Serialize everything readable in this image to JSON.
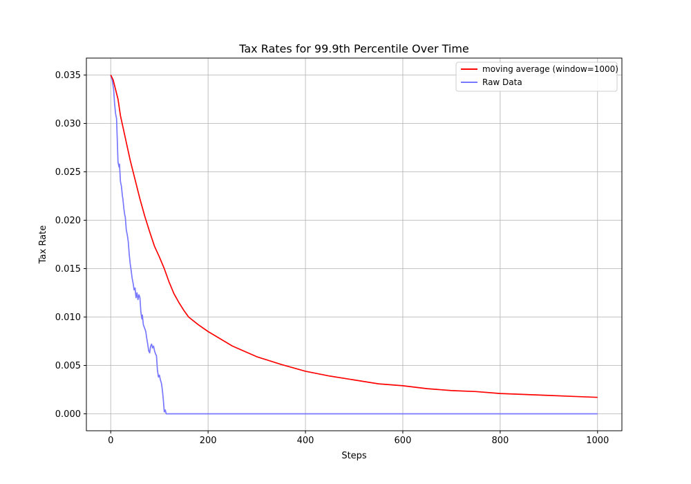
{
  "chart_data": {
    "type": "line",
    "title": "Tax Rates for 99.9th Percentile Over Time",
    "xlabel": "Steps",
    "ylabel": "Tax Rate",
    "xlim": [
      -50,
      1050
    ],
    "ylim": [
      -0.00175,
      0.03675
    ],
    "xticks": [
      0,
      200,
      400,
      600,
      800,
      1000
    ],
    "xtick_labels": [
      "0",
      "200",
      "400",
      "600",
      "800",
      "1000"
    ],
    "yticks": [
      0.0,
      0.005,
      0.01,
      0.015,
      0.02,
      0.025,
      0.03,
      0.035
    ],
    "ytick_labels": [
      "0.000",
      "0.005",
      "0.010",
      "0.015",
      "0.020",
      "0.025",
      "0.030",
      "0.035"
    ],
    "grid": true,
    "legend_position": "top-right",
    "series": [
      {
        "name": "moving average (window=1000)",
        "color": "#ff0000",
        "x": [
          0,
          5,
          10,
          15,
          20,
          30,
          40,
          50,
          60,
          70,
          80,
          90,
          100,
          110,
          120,
          130,
          140,
          150,
          160,
          180,
          200,
          250,
          300,
          350,
          400,
          450,
          500,
          550,
          600,
          650,
          700,
          750,
          800,
          850,
          900,
          950,
          1000
        ],
        "y": [
          0.035,
          0.0345,
          0.0335,
          0.0325,
          0.0308,
          0.0285,
          0.0262,
          0.0242,
          0.0222,
          0.0204,
          0.0188,
          0.0173,
          0.0162,
          0.015,
          0.0136,
          0.0124,
          0.0115,
          0.0107,
          0.01,
          0.0092,
          0.0085,
          0.007,
          0.0059,
          0.0051,
          0.0044,
          0.0039,
          0.0035,
          0.0031,
          0.0029,
          0.0026,
          0.0024,
          0.0023,
          0.0021,
          0.002,
          0.0019,
          0.0018,
          0.0017
        ]
      },
      {
        "name": "Raw Data",
        "color": "#7777ff",
        "x": [
          0,
          3,
          6,
          8,
          10,
          12,
          15,
          17,
          18,
          20,
          22,
          24,
          25,
          27,
          29,
          30,
          32,
          34,
          36,
          38,
          40,
          42,
          44,
          46,
          48,
          50,
          52,
          54,
          56,
          58,
          60,
          62,
          64,
          65,
          67,
          70,
          72,
          74,
          76,
          78,
          80,
          82,
          84,
          86,
          88,
          90,
          92,
          94,
          96,
          98,
          100,
          102,
          104,
          106,
          108,
          110,
          112,
          114,
          116,
          118,
          120,
          1000
        ],
        "y": [
          0.035,
          0.0345,
          0.0335,
          0.032,
          0.031,
          0.0305,
          0.026,
          0.0255,
          0.0258,
          0.024,
          0.0235,
          0.0225,
          0.0222,
          0.0212,
          0.0205,
          0.0203,
          0.019,
          0.0185,
          0.0178,
          0.0165,
          0.0155,
          0.0148,
          0.014,
          0.0135,
          0.0128,
          0.013,
          0.012,
          0.0125,
          0.0118,
          0.0123,
          0.012,
          0.0105,
          0.0098,
          0.0102,
          0.0092,
          0.0088,
          0.0085,
          0.0078,
          0.0072,
          0.0065,
          0.0063,
          0.007,
          0.0072,
          0.0068,
          0.007,
          0.0065,
          0.0062,
          0.006,
          0.0045,
          0.0038,
          0.004,
          0.0035,
          0.0032,
          0.0025,
          0.0015,
          0.0002,
          0.0004,
          0.0,
          0.0,
          0.0,
          0.0,
          0.0
        ]
      }
    ]
  }
}
